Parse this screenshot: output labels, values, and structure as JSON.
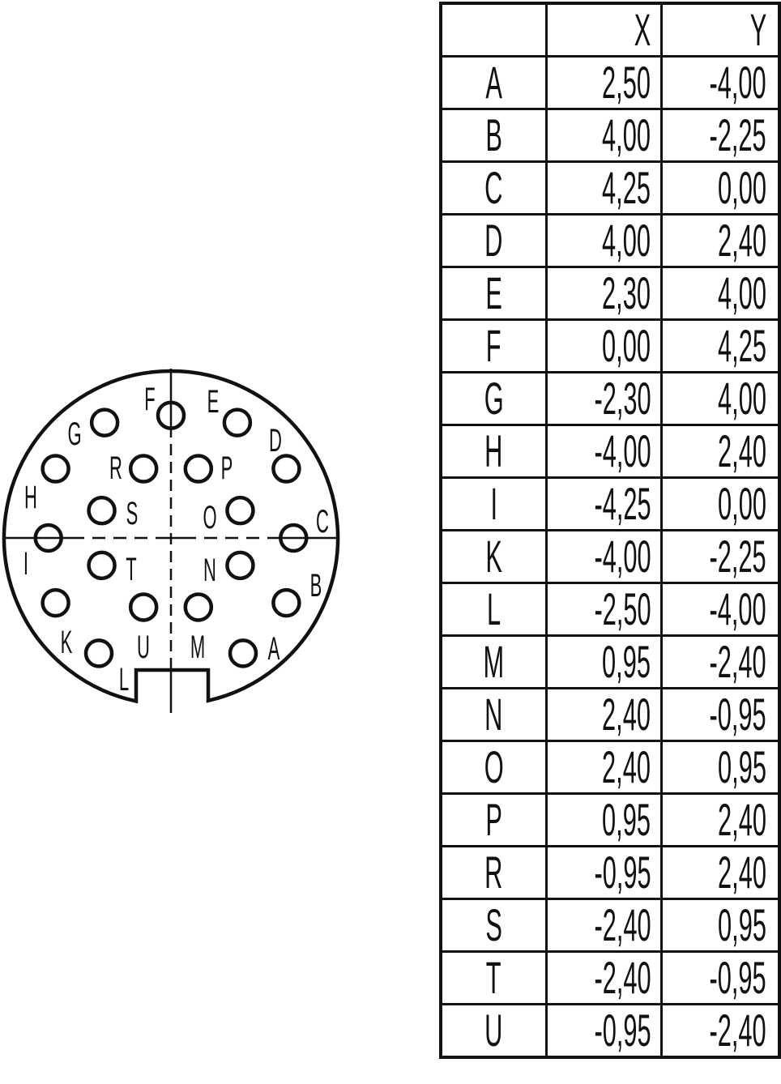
{
  "table": {
    "headers": [
      "",
      "X",
      "Y"
    ],
    "rows": [
      [
        "A",
        "2,50",
        "-4,00"
      ],
      [
        "B",
        "4,00",
        "-2,25"
      ],
      [
        "C",
        "4,25",
        "0,00"
      ],
      [
        "D",
        "4,00",
        "2,40"
      ],
      [
        "E",
        "2,30",
        "4,00"
      ],
      [
        "F",
        "0,00",
        "4,25"
      ],
      [
        "G",
        "-2,30",
        "4,00"
      ],
      [
        "H",
        "-4,00",
        "2,40"
      ],
      [
        "I",
        "-4,25",
        "0,00"
      ],
      [
        "K",
        "-4,00",
        "-2,25"
      ],
      [
        "L",
        "-2,50",
        "-4,00"
      ],
      [
        "M",
        "0,95",
        "-2,40"
      ],
      [
        "N",
        "2,40",
        "-0,95"
      ],
      [
        "O",
        "2,40",
        "0,95"
      ],
      [
        "P",
        "0,95",
        "2,40"
      ],
      [
        "R",
        "-0,95",
        "2,40"
      ],
      [
        "S",
        "-2,40",
        "0,95"
      ],
      [
        "T",
        "-2,40",
        "-0,95"
      ],
      [
        "U",
        "-0,95",
        "-2,40"
      ]
    ]
  },
  "colors": {
    "line": "#111111",
    "background": "#ffffff"
  }
}
